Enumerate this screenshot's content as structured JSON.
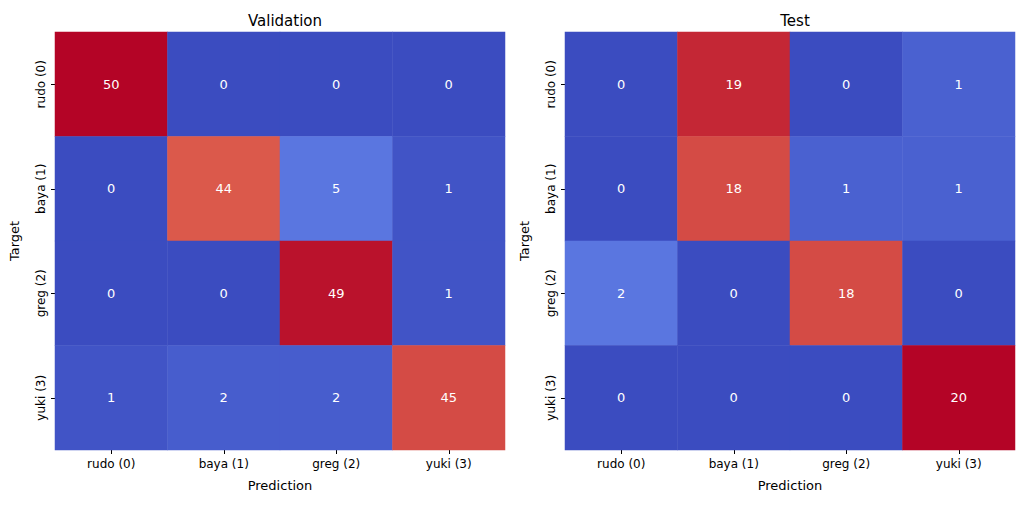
{
  "chart_data": [
    {
      "type": "heatmap",
      "title": "Validation",
      "x_label": "Prediction",
      "y_label": "Target",
      "categories": [
        "rudo (0)",
        "baya (1)",
        "greg (2)",
        "yuki (3)"
      ],
      "y_categories": [
        "rudo (0)",
        "baya (1)",
        "greg (2)",
        "yuki (3)"
      ],
      "cells": [
        [
          50,
          0,
          0,
          0
        ],
        [
          0,
          44,
          5,
          1
        ],
        [
          0,
          0,
          49,
          1
        ],
        [
          1,
          2,
          2,
          45
        ]
      ],
      "data_labels": true
    },
    {
      "type": "heatmap",
      "title": "Test",
      "x_label": "Prediction",
      "y_label": "Target",
      "categories": [
        "rudo (0)",
        "baya (1)",
        "greg (2)",
        "yuki (3)"
      ],
      "y_categories": [
        "rudo (0)",
        "baya (1)",
        "greg (2)",
        "yuki (3)"
      ],
      "cells": [
        [
          0,
          19,
          0,
          1
        ],
        [
          0,
          18,
          1,
          1
        ],
        [
          2,
          0,
          18,
          0
        ],
        [
          0,
          0,
          0,
          20
        ]
      ],
      "data_labels": true
    }
  ]
}
